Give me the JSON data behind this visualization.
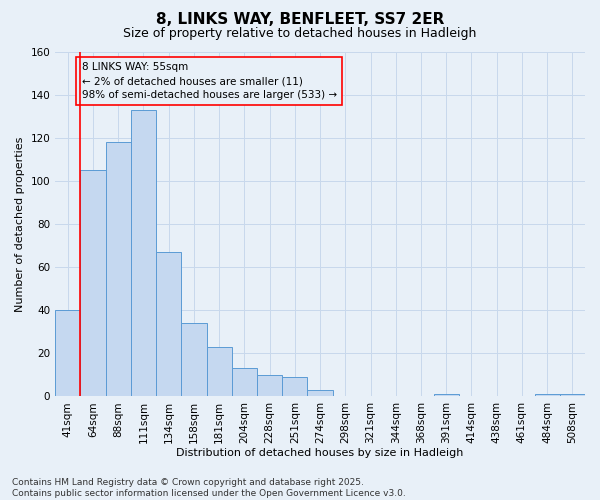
{
  "title": "8, LINKS WAY, BENFLEET, SS7 2ER",
  "subtitle": "Size of property relative to detached houses in Hadleigh",
  "xlabel": "Distribution of detached houses by size in Hadleigh",
  "ylabel": "Number of detached properties",
  "footer": "Contains HM Land Registry data © Crown copyright and database right 2025.\nContains public sector information licensed under the Open Government Licence v3.0.",
  "categories": [
    "41sqm",
    "64sqm",
    "88sqm",
    "111sqm",
    "134sqm",
    "158sqm",
    "181sqm",
    "204sqm",
    "228sqm",
    "251sqm",
    "274sqm",
    "298sqm",
    "321sqm",
    "344sqm",
    "368sqm",
    "391sqm",
    "414sqm",
    "438sqm",
    "461sqm",
    "484sqm",
    "508sqm"
  ],
  "values": [
    40,
    105,
    118,
    133,
    67,
    34,
    23,
    13,
    10,
    9,
    3,
    0,
    0,
    0,
    0,
    1,
    0,
    0,
    0,
    1,
    1
  ],
  "bar_color": "#c5d8f0",
  "bar_edge_color": "#5b9bd5",
  "grid_color": "#c8d8ec",
  "background_color": "#e8f0f8",
  "ylim": [
    0,
    160
  ],
  "yticks": [
    0,
    20,
    40,
    60,
    80,
    100,
    120,
    140,
    160
  ],
  "annotation_text": "8 LINKS WAY: 55sqm\n← 2% of detached houses are smaller (11)\n98% of semi-detached houses are larger (533) →",
  "marker_color": "red",
  "title_fontsize": 11,
  "subtitle_fontsize": 9,
  "axis_label_fontsize": 8,
  "tick_fontsize": 7.5,
  "annotation_fontsize": 7.5,
  "footer_fontsize": 6.5
}
